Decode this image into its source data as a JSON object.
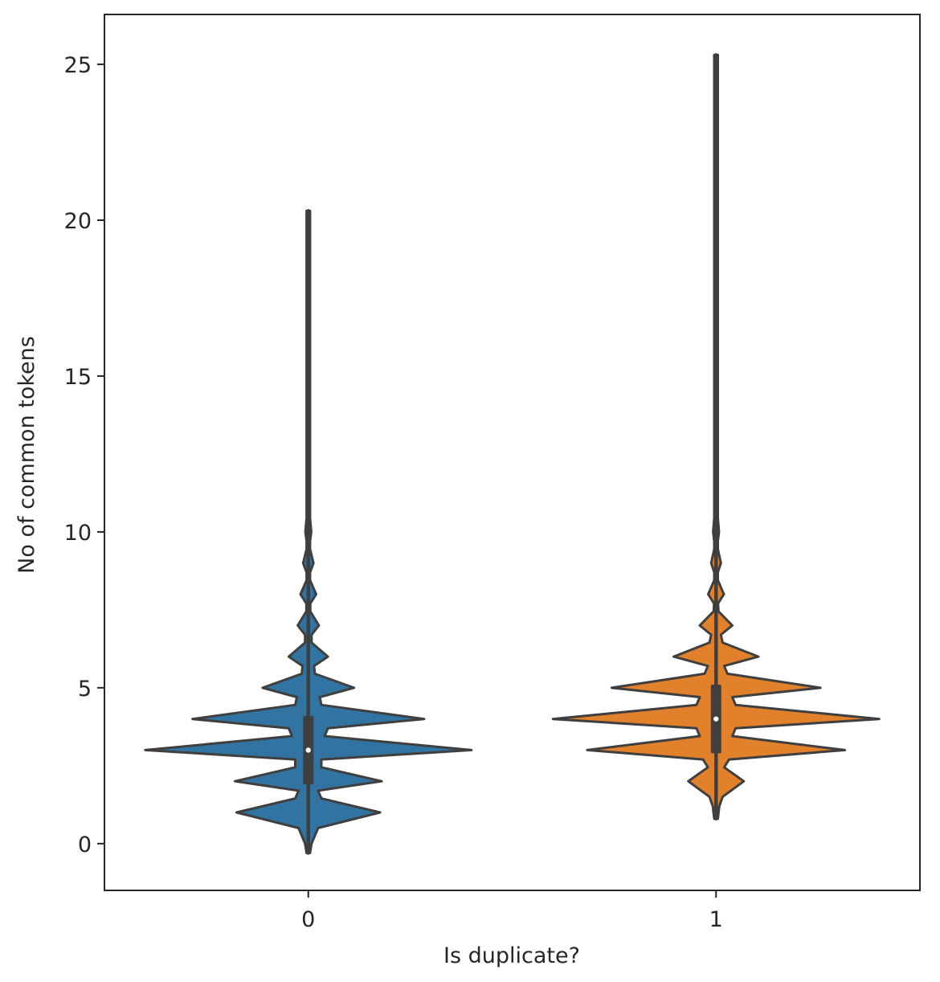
{
  "chart_data": {
    "type": "violin",
    "title": "",
    "xlabel": "Is duplicate?",
    "ylabel": "No of common tokens",
    "categories": [
      "0",
      "1"
    ],
    "ylim": [
      -1.5,
      26.6
    ],
    "yticks": [
      0,
      5,
      10,
      15,
      20,
      25
    ],
    "grid": false,
    "legend": "none",
    "line_color": "#3f3f3f",
    "series": [
      {
        "category": "0",
        "color": "#3274a1",
        "range": [
          -0.3,
          20.3
        ],
        "quartiles": [
          2.0,
          3.0,
          4.0
        ],
        "whisker_box": [
          1.9,
          4.1
        ],
        "density": [
          [
            -0.3,
            0.005
          ],
          [
            0.0,
            0.02
          ],
          [
            0.5,
            0.06
          ],
          [
            1.0,
            0.44
          ],
          [
            1.45,
            0.08
          ],
          [
            1.7,
            0.06
          ],
          [
            2.0,
            0.45
          ],
          [
            2.45,
            0.08
          ],
          [
            2.7,
            0.08
          ],
          [
            3.0,
            1.0
          ],
          [
            3.45,
            0.1
          ],
          [
            3.7,
            0.12
          ],
          [
            4.0,
            0.71
          ],
          [
            4.45,
            0.08
          ],
          [
            4.7,
            0.07
          ],
          [
            5.0,
            0.28
          ],
          [
            5.45,
            0.04
          ],
          [
            5.7,
            0.035
          ],
          [
            6.0,
            0.12
          ],
          [
            6.45,
            0.02
          ],
          [
            6.7,
            0.02
          ],
          [
            7.0,
            0.065
          ],
          [
            7.45,
            0.012
          ],
          [
            7.7,
            0.012
          ],
          [
            8.0,
            0.048
          ],
          [
            8.45,
            0.01
          ],
          [
            8.7,
            0.01
          ],
          [
            9.0,
            0.032
          ],
          [
            9.45,
            0.008
          ],
          [
            9.7,
            0.008
          ],
          [
            10.0,
            0.018
          ],
          [
            10.45,
            0.006
          ],
          [
            11.0,
            0.01
          ],
          [
            12.0,
            0.008
          ],
          [
            14.0,
            0.006
          ],
          [
            17.0,
            0.006
          ],
          [
            20.3,
            0.005
          ]
        ]
      },
      {
        "category": "1",
        "color": "#e1812c",
        "range": [
          0.8,
          25.3
        ],
        "quartiles": [
          3.0,
          4.0,
          5.0
        ],
        "whisker_box": [
          2.9,
          5.1
        ],
        "density": [
          [
            0.8,
            0.005
          ],
          [
            1.2,
            0.02
          ],
          [
            1.5,
            0.04
          ],
          [
            2.0,
            0.17
          ],
          [
            2.45,
            0.05
          ],
          [
            2.7,
            0.08
          ],
          [
            3.0,
            0.79
          ],
          [
            3.45,
            0.1
          ],
          [
            3.7,
            0.12
          ],
          [
            4.0,
            1.0
          ],
          [
            4.45,
            0.12
          ],
          [
            4.7,
            0.1
          ],
          [
            5.0,
            0.64
          ],
          [
            5.45,
            0.07
          ],
          [
            5.7,
            0.05
          ],
          [
            6.0,
            0.26
          ],
          [
            6.45,
            0.04
          ],
          [
            6.7,
            0.03
          ],
          [
            7.0,
            0.1
          ],
          [
            7.45,
            0.015
          ],
          [
            7.7,
            0.012
          ],
          [
            8.0,
            0.048
          ],
          [
            8.45,
            0.01
          ],
          [
            8.7,
            0.01
          ],
          [
            9.0,
            0.03
          ],
          [
            9.45,
            0.008
          ],
          [
            9.7,
            0.008
          ],
          [
            10.0,
            0.018
          ],
          [
            10.45,
            0.006
          ],
          [
            11.0,
            0.01
          ],
          [
            12.0,
            0.007
          ],
          [
            15.0,
            0.006
          ],
          [
            20.0,
            0.006
          ],
          [
            25.3,
            0.005
          ]
        ]
      }
    ]
  }
}
